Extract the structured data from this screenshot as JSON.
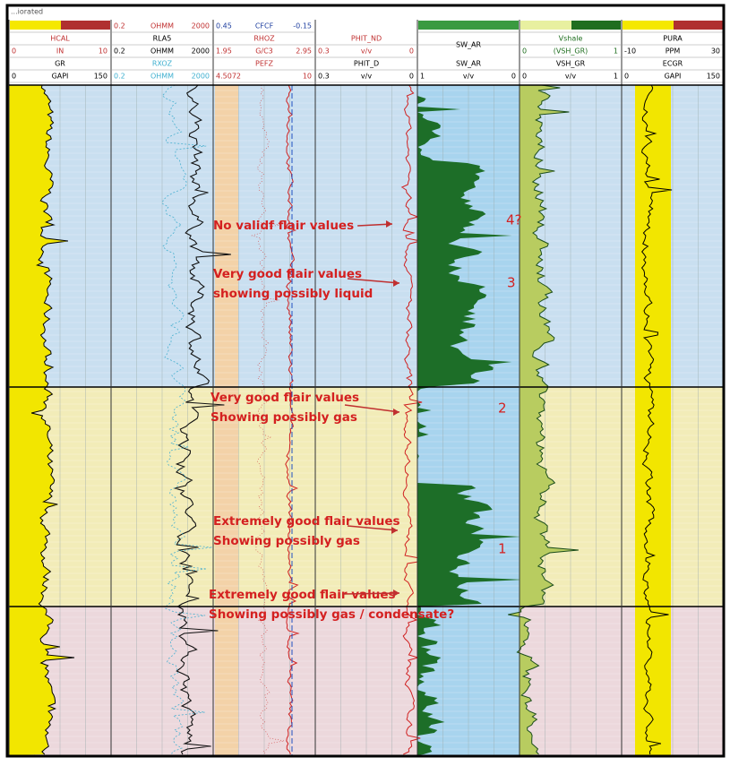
{
  "header": {
    "title": "...iorated"
  },
  "tracks": [
    {
      "header": [
        {
          "bar": [
            "#f5e800",
            "#b03030"
          ]
        },
        {
          "name": "HCAL",
          "color": "#c03030"
        },
        {
          "scale": [
            0,
            "IN",
            10
          ],
          "color": "#c03030"
        },
        {
          "name": "GR",
          "color": "#000000"
        },
        {
          "scale": [
            0,
            "GAPI",
            150
          ],
          "color": "#000000"
        }
      ]
    },
    {
      "header": [
        {
          "scale": [
            0.2,
            "OHMM",
            2000
          ],
          "color": "#c03030"
        },
        {
          "name": "RLA5",
          "color": "#000000"
        },
        {
          "scale": [
            0.2,
            "OHMM",
            2000
          ],
          "color": "#000000"
        },
        {
          "name": "RXOZ",
          "color": "#40b0d0"
        },
        {
          "scale": [
            0.2,
            "OHMM",
            2000
          ],
          "color": "#40b0d0"
        }
      ]
    },
    {
      "header": [
        {
          "scale": [
            0.45,
            "CFCF",
            -0.15
          ],
          "color": "#2040a0"
        },
        {
          "name": "RHOZ",
          "color": "#c03030"
        },
        {
          "scale": [
            1.95,
            "G/C3",
            2.95
          ],
          "color": "#c03030"
        },
        {
          "name": "PEFZ",
          "color": "#c03030"
        },
        {
          "scale": [
            4.5072,
            "",
            10
          ],
          "color": "#c03030"
        }
      ]
    },
    {
      "header": [
        null,
        {
          "name": "PHIT_ND",
          "color": "#c03030"
        },
        {
          "scale": [
            0.3,
            "v/v",
            0
          ],
          "color": "#c03030"
        },
        {
          "name": "PHIT_D",
          "color": "#000000"
        },
        {
          "scale": [
            0.3,
            "v/v",
            0
          ],
          "color": "#000000"
        }
      ]
    },
    {
      "header": [
        {
          "bar": [
            "#3a9a40",
            "#3a9a40"
          ]
        },
        {
          "name": "SW_AR",
          "color": "#000000",
          "span": 2
        },
        null,
        {
          "name": "SW_AR",
          "color": "#000000"
        },
        {
          "scale": [
            1,
            "v/v",
            0
          ],
          "color": "#000000"
        }
      ]
    },
    {
      "header": [
        {
          "bar": [
            "#e8f0a0",
            "#1f6e1f"
          ]
        },
        {
          "name": "Vshale",
          "color": "#1f6e1f"
        },
        {
          "scale": [
            0,
            "(VSH_GR)",
            1
          ],
          "color": "#1f6e1f"
        },
        {
          "name": "VSH_GR",
          "color": "#000000"
        },
        {
          "scale": [
            0,
            "v/v",
            1
          ],
          "color": "#000000"
        }
      ]
    },
    {
      "header": [
        {
          "bar": [
            "#f5e800",
            "#b03030"
          ]
        },
        {
          "name": "PURA",
          "color": "#000000"
        },
        {
          "scale": [
            -10,
            "PPM",
            30
          ],
          "color": "#000000"
        },
        {
          "name": "ECGR",
          "color": "#000000"
        },
        {
          "scale": [
            0,
            "GAPI",
            150
          ],
          "color": "#000000"
        }
      ]
    }
  ],
  "annotations": [
    {
      "lines": [
        "No validf flair values"
      ]
    },
    {
      "lines": [
        "Very good flair values",
        "showing possibly liquid"
      ]
    },
    {
      "lines": [
        "Very good flair values",
        "Showing possibly gas"
      ]
    },
    {
      "lines": [
        "Extremely good flair values",
        "Showing possibly gas"
      ]
    },
    {
      "lines": [
        "Extremely good flair values",
        "Showing possibly gas / condensate?"
      ]
    }
  ],
  "zone_labels": [
    "4?",
    "3",
    "2",
    "1"
  ]
}
